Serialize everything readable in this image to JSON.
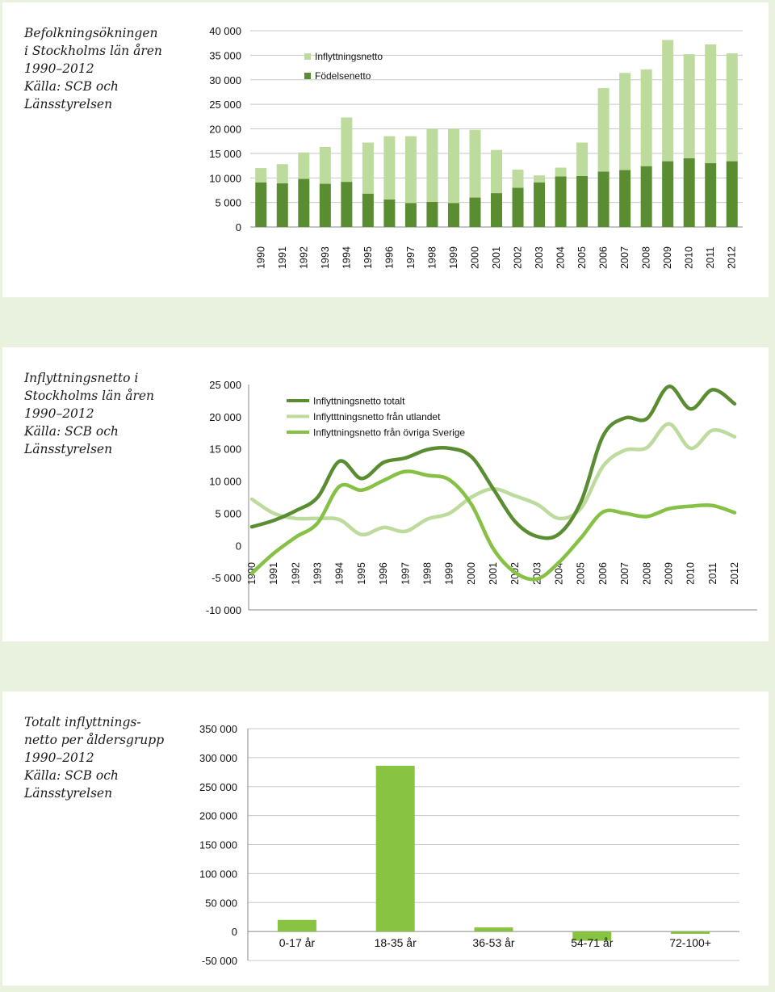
{
  "colors": {
    "background": "#e9f2de",
    "panel": "#ffffff",
    "dark_green": "#5a8d32",
    "light_green": "#bcdb9c",
    "mid_green": "#86c044",
    "bar_green": "#88c441"
  },
  "charts": [
    {
      "caption": [
        "Befolkningsökningen",
        "i Stockholms län åren",
        "1990–2012",
        "Källa: SCB och",
        "Länsstyrelsen"
      ],
      "legend": [
        "Inflyttningsnetto",
        "Födelsenetto"
      ]
    },
    {
      "caption": [
        "Inflyttningsnetto i",
        "Stockholms län åren",
        "1990–2012",
        "Källa: SCB och",
        "Länsstyrelsen"
      ],
      "legend": [
        "Inflyttningsnetto totalt",
        "Inflytttningsnetto från utlandet",
        "Inflyttningsnetto från övriga Sverige"
      ]
    },
    {
      "caption": [
        "Totalt inflyttnings-",
        "netto per åldersgrupp",
        "1990–2012",
        "Källa: SCB och",
        "Länsstyrelsen"
      ],
      "legend": []
    }
  ],
  "chart_data": [
    {
      "type": "bar",
      "stacked": true,
      "categories": [
        "1990",
        "1991",
        "1992",
        "1993",
        "1994",
        "1995",
        "1996",
        "1997",
        "1998",
        "1999",
        "2000",
        "2001",
        "2002",
        "2003",
        "2004",
        "2005",
        "2006",
        "2007",
        "2008",
        "2009",
        "2010",
        "2011",
        "2012"
      ],
      "series": [
        {
          "name": "Födelsenetto",
          "values": [
            9100,
            8900,
            9800,
            8800,
            9200,
            6800,
            5600,
            4900,
            5100,
            4900,
            6000,
            6900,
            8000,
            9100,
            10300,
            10400,
            11300,
            11600,
            12400,
            13400,
            14000,
            13000,
            13400
          ]
        },
        {
          "name": "Inflyttningsnetto",
          "values": [
            2900,
            3900,
            5400,
            7500,
            13100,
            10400,
            12900,
            13600,
            14900,
            15100,
            13800,
            8800,
            3700,
            1400,
            1800,
            6800,
            17000,
            19800,
            19700,
            24700,
            21200,
            24200,
            22000
          ]
        }
      ],
      "ylim": [
        0,
        40000
      ],
      "yticks": [
        "0",
        "5 000",
        "10 000",
        "15 000",
        "20 000",
        "25 000",
        "30 000",
        "35 000",
        "40 000"
      ],
      "grid": true,
      "legend_position": "top-left"
    },
    {
      "type": "line",
      "x": [
        "1990",
        "1991",
        "1992",
        "1993",
        "1994",
        "1995",
        "1996",
        "1997",
        "1998",
        "1999",
        "2000",
        "2001",
        "2002",
        "2003",
        "2004",
        "2005",
        "2006",
        "2007",
        "2008",
        "2009",
        "2010",
        "2011",
        "2012"
      ],
      "series": [
        {
          "name": "Inflyttningsnetto totalt",
          "values": [
            2900,
            3900,
            5400,
            7500,
            13100,
            10400,
            12900,
            13600,
            14900,
            15100,
            13800,
            8800,
            3700,
            1400,
            1800,
            6800,
            17000,
            19800,
            19700,
            24700,
            21200,
            24200,
            22000
          ]
        },
        {
          "name": "Inflytttningsnetto från utlandet",
          "values": [
            7200,
            5000,
            4200,
            4200,
            4000,
            1700,
            2800,
            2200,
            4100,
            5000,
            7500,
            8800,
            7700,
            6400,
            4200,
            5800,
            12300,
            14800,
            15200,
            18900,
            15100,
            17900,
            16900
          ]
        },
        {
          "name": "Inflyttningsnetto från övriga Sverige",
          "values": [
            -4300,
            -1200,
            1300,
            3500,
            9200,
            8600,
            10100,
            11500,
            10900,
            10200,
            6400,
            -500,
            -4200,
            -5200,
            -2600,
            1200,
            5200,
            5000,
            4500,
            5700,
            6100,
            6200,
            5100
          ]
        }
      ],
      "ylim": [
        -10000,
        25000
      ],
      "yticks": [
        "-10 000",
        "-5 000",
        "0",
        "5 000",
        "10 000",
        "15 000",
        "20 000",
        "25 000"
      ],
      "grid": false,
      "legend_position": "top-left"
    },
    {
      "type": "bar",
      "categories": [
        "0-17 år",
        "18-35 år",
        "36-53 år",
        "54-71 år",
        "72-100+"
      ],
      "values": [
        20000,
        286000,
        7000,
        -16000,
        -4000
      ],
      "ylim": [
        -50000,
        350000
      ],
      "yticks": [
        "-50 000",
        "0",
        "50 000",
        "100 000",
        "150 000",
        "200 000",
        "250 000",
        "300 000",
        "350 000"
      ],
      "grid": true
    }
  ]
}
